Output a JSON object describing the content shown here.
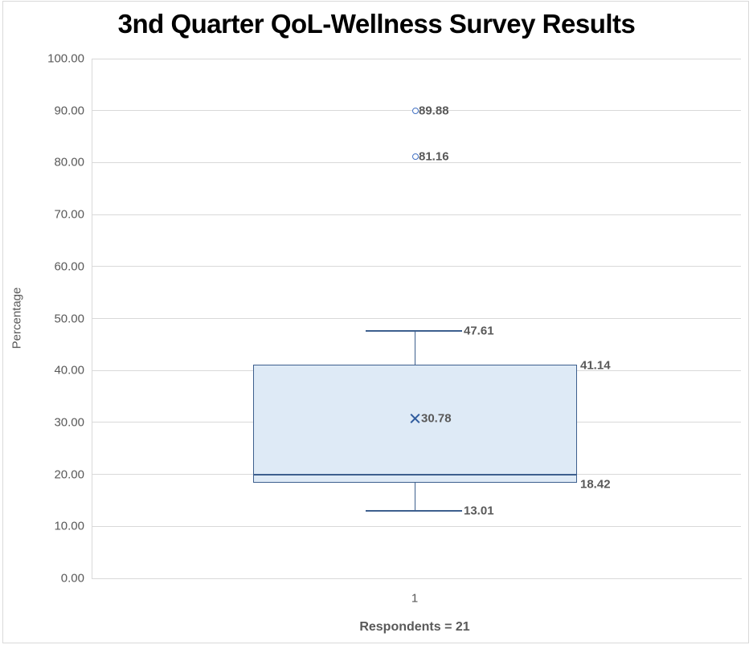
{
  "chart_data": {
    "type": "box",
    "title": "3nd Quarter QoL-Wellness Survey Results",
    "ylabel": "Percentage",
    "xlabel": "Respondents = 21",
    "categories": [
      "1"
    ],
    "ylim": [
      0,
      100
    ],
    "ytick_step": 10,
    "ytick_labels": [
      "0.00",
      "10.00",
      "20.00",
      "30.00",
      "40.00",
      "50.00",
      "60.00",
      "70.00",
      "80.00",
      "90.00",
      "100.00"
    ],
    "grid": true,
    "legend": "none",
    "series": [
      {
        "category": "1",
        "whisker_low": 13.01,
        "q1": 18.42,
        "median": 20.0,
        "q3": 41.14,
        "whisker_high": 47.61,
        "mean": 30.78,
        "outliers": [
          81.16,
          89.88
        ]
      }
    ],
    "labels": {
      "whisker_high": "47.61",
      "q3": "41.14",
      "mean": "30.78",
      "q1": "18.42",
      "whisker_low": "13.01",
      "outliers": [
        "81.16",
        "89.88"
      ]
    },
    "colors": {
      "box_fill": "#DEEAF6",
      "box_border": "#3D5F8E",
      "outlier_marker": "#4472C4",
      "mean_marker": "#2F5B9D",
      "gridline": "#D9D9D9",
      "data_label": "#595959",
      "title": "#000000"
    }
  }
}
